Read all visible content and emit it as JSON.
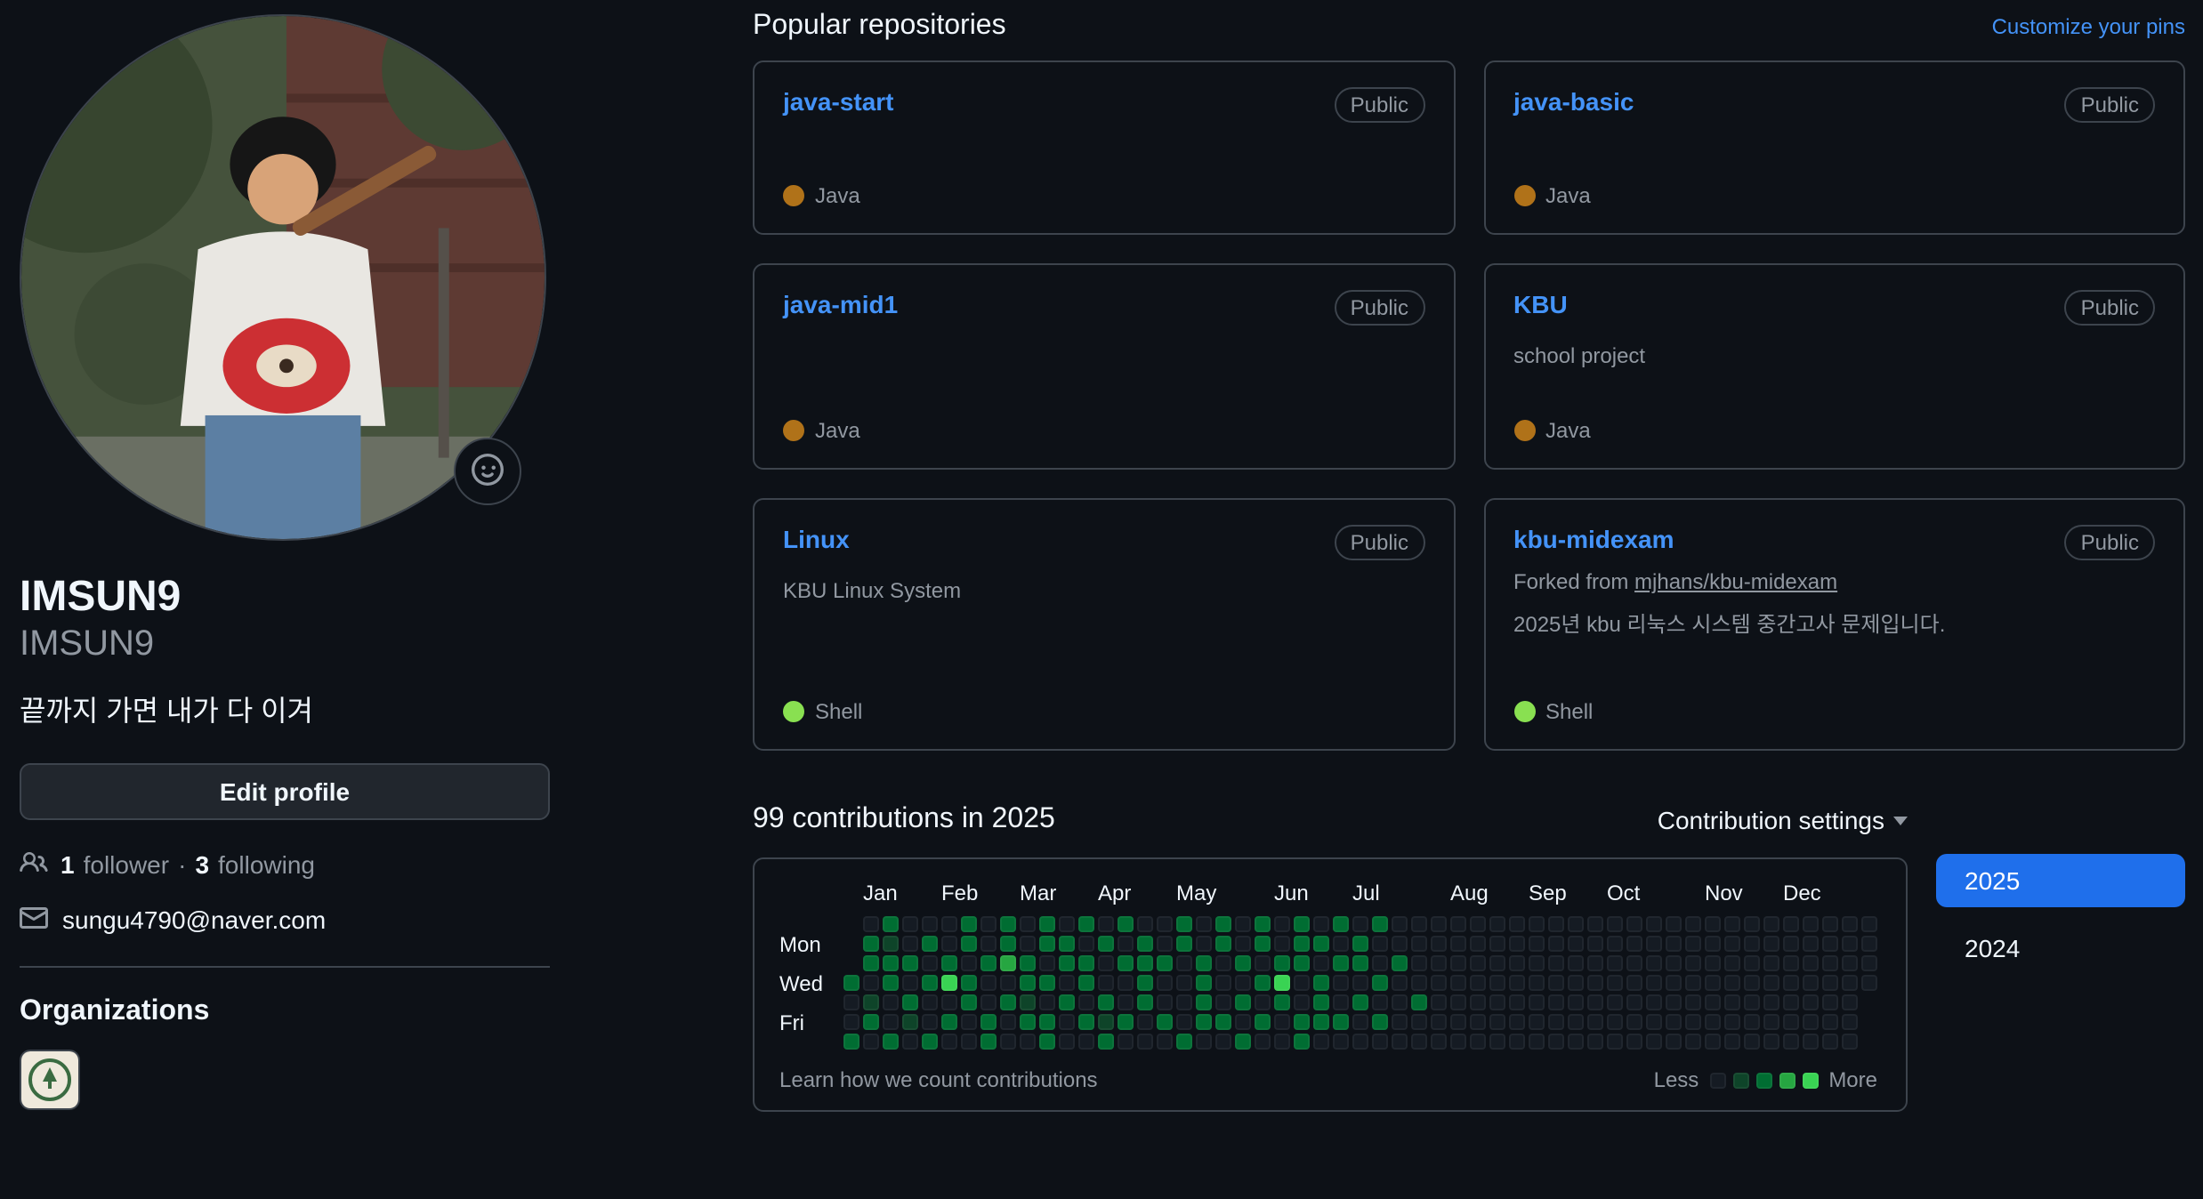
{
  "profile": {
    "name": "IMSUN9",
    "login": "IMSUN9",
    "bio": "끝까지 가면 내가 다 이겨",
    "edit_button": "Edit profile",
    "followers": {
      "count": "1",
      "label": "follower",
      "separator": "·",
      "following_count": "3",
      "following_label": "following"
    },
    "email": "sungu4790@naver.com",
    "organizations_title": "Organizations"
  },
  "icons": {
    "status": "smiley-icon",
    "followers": "people-icon",
    "email": "mail-icon",
    "settings": "chevron-down-icon"
  },
  "pinned": {
    "title": "Popular repositories",
    "customize_link": "Customize your pins",
    "repos": [
      {
        "name": "java-start",
        "visibility": "Public",
        "forked_from": "",
        "description": "",
        "language": "Java",
        "language_color": "#b07219"
      },
      {
        "name": "java-basic",
        "visibility": "Public",
        "forked_from": "",
        "description": "",
        "language": "Java",
        "language_color": "#b07219"
      },
      {
        "name": "java-mid1",
        "visibility": "Public",
        "forked_from": "",
        "description": "",
        "language": "Java",
        "language_color": "#b07219"
      },
      {
        "name": "KBU",
        "visibility": "Public",
        "forked_from": "",
        "description": "school project",
        "language": "Java",
        "language_color": "#b07219"
      },
      {
        "name": "Linux",
        "visibility": "Public",
        "forked_from": "",
        "description": "KBU Linux System",
        "language": "Shell",
        "language_color": "#89e051"
      },
      {
        "name": "kbu-midexam",
        "visibility": "Public",
        "forked_from_prefix": "Forked from",
        "forked_from": "mjhans/kbu-midexam",
        "description": "2025년 kbu 리눅스 시스템 중간고사 문제입니다.",
        "language": "Shell",
        "language_color": "#89e051"
      }
    ]
  },
  "contributions": {
    "title": "99 contributions in 2025",
    "settings_label": "Contribution settings",
    "footer_link": "Learn how we count contributions",
    "years": [
      {
        "label": "2025",
        "active": true
      },
      {
        "label": "2024",
        "active": false
      }
    ],
    "months": [
      {
        "label": "Jan",
        "week": 1
      },
      {
        "label": "Feb",
        "week": 5
      },
      {
        "label": "Mar",
        "week": 9
      },
      {
        "label": "Apr",
        "week": 13
      },
      {
        "label": "May",
        "week": 17
      },
      {
        "label": "Jun",
        "week": 22
      },
      {
        "label": "Jul",
        "week": 26
      },
      {
        "label": "Aug",
        "week": 31
      },
      {
        "label": "Sep",
        "week": 35
      },
      {
        "label": "Oct",
        "week": 39
      },
      {
        "label": "Nov",
        "week": 44
      },
      {
        "label": "Dec",
        "week": 48
      }
    ],
    "day_labels": [
      {
        "label": "Mon",
        "row": 1
      },
      {
        "label": "Wed",
        "row": 3
      },
      {
        "label": "Fri",
        "row": 5
      }
    ],
    "level_colors": [
      "#151b23",
      "#0e4429",
      "#006d32",
      "#26a641",
      "#39d353"
    ],
    "weeks": [
      "xxx2002",
      "0220120",
      "2122002",
      "0020210",
      "0202002",
      "0024020",
      "2202200",
      "0020022",
      "2230200",
      "0022120",
      "2202022",
      "0220200",
      "2022020",
      "0200212",
      "2020020",
      "0222200",
      "0020020",
      "2200002",
      "0022220",
      "2200020",
      "0020202",
      "2202020",
      "0024200",
      "2220022",
      "0202220",
      "2020020",
      "0220200",
      "2002020",
      "0020000",
      "0000200",
      "0000000",
      "0000000",
      "0000000",
      "0000000",
      "0000000",
      "0000000",
      "0000000",
      "0000000",
      "0000000",
      "0000000",
      "0000000",
      "0000000",
      "0000000",
      "0000000",
      "0000000",
      "0000000",
      "0000000",
      "0000000",
      "0000000",
      "0000000",
      "0000000",
      "0000000",
      "0000xxx"
    ],
    "legend": {
      "less": "Less",
      "more": "More",
      "levels": [
        0,
        1,
        2,
        3,
        4
      ]
    }
  }
}
